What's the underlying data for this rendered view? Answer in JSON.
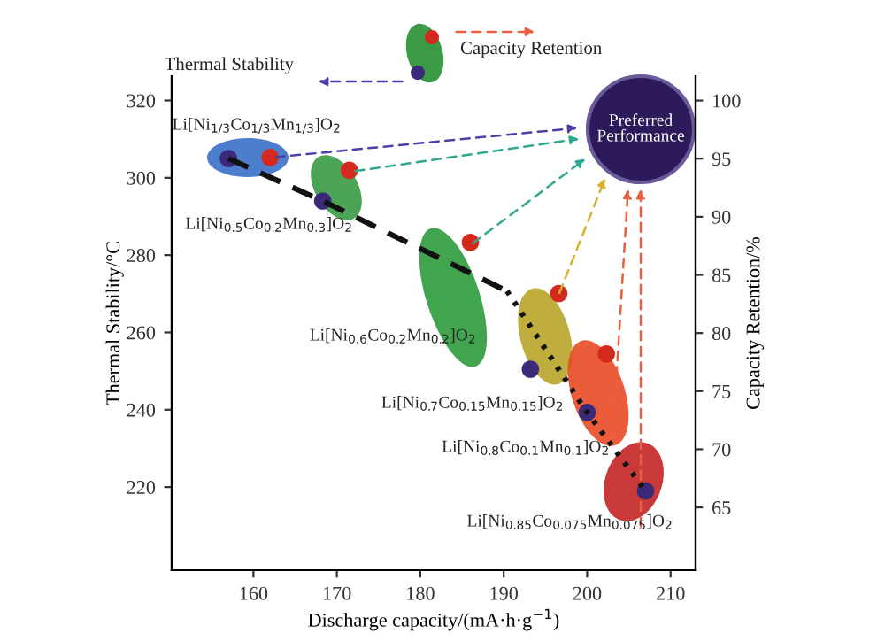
{
  "chart_data": {
    "type": "scatter",
    "xlabel": "Discharge capacity/(mA·h·g$^{−1}$)",
    "ylabel": "Thermal Stability/°C",
    "y2label": "Capacity Retention/%",
    "xlim": [
      150.2,
      213
    ],
    "xticks": [
      160,
      170,
      180,
      190,
      200,
      210
    ],
    "ylim": [
      198.5,
      326.3
    ],
    "yticks": [
      220,
      240,
      260,
      280,
      300,
      320
    ],
    "y2lim": [
      59.6,
      102.1
    ],
    "y2ticks": [
      65,
      70,
      75,
      80,
      85,
      90,
      95,
      100
    ],
    "grid": false,
    "legend": false,
    "marker": "circle",
    "series": [
      {
        "type": "line",
        "axis": "y",
        "color": "#111111",
        "line_style": "dashed",
        "marker": "none",
        "x": [
          157,
          168.3,
          190.4
        ],
        "values": [
          305,
          294,
          270.7
        ]
      },
      {
        "type": "line",
        "axis": "y",
        "color": "#111111",
        "line_style": "dotted",
        "marker": "none",
        "x": [
          190.4,
          200,
          207
        ],
        "values": [
          270.7,
          239.3,
          219
        ]
      },
      {
        "axis": "y",
        "color": "#3b2a7a",
        "x": [
          157,
          168.3,
          193.2,
          200,
          207
        ],
        "values": [
          305,
          294,
          250.5,
          239.3,
          219
        ]
      },
      {
        "axis": "y2",
        "color": "#d42a1e",
        "x": [
          162,
          171.5,
          186,
          196.6,
          202.3
        ],
        "values": [
          95.1,
          94,
          87.8,
          83.4,
          78.2
        ]
      }
    ],
    "annotations": [
      "Thermal Stability",
      "Capacity Retention",
      "Preferred\nPerformance",
      "Li[Ni$_{1/3}$Co$_{1/3}$Mn$_{1/3}$]O$_{2}$",
      "Li[Ni$_{0.5}$Co$_{0.2}$Mn$_{0.3}$]O$_{2}$",
      "Li[Ni$_{0.6}$Co$_{0.2}$Mn$_{0.2}$]O$_{2}$",
      "Li[Ni$_{0.7}$Co$_{0.15}$Mn$_{0.15}$]O$_{2}$",
      "Li[Ni$_{0.8}$Co$_{0.1}$Mn$_{0.1}$]O$_{2}$",
      "Li[Ni$_{0.85}$Co$_{0.075}$Mn$_{0.075}$]O$_{2}$"
    ]
  }
}
